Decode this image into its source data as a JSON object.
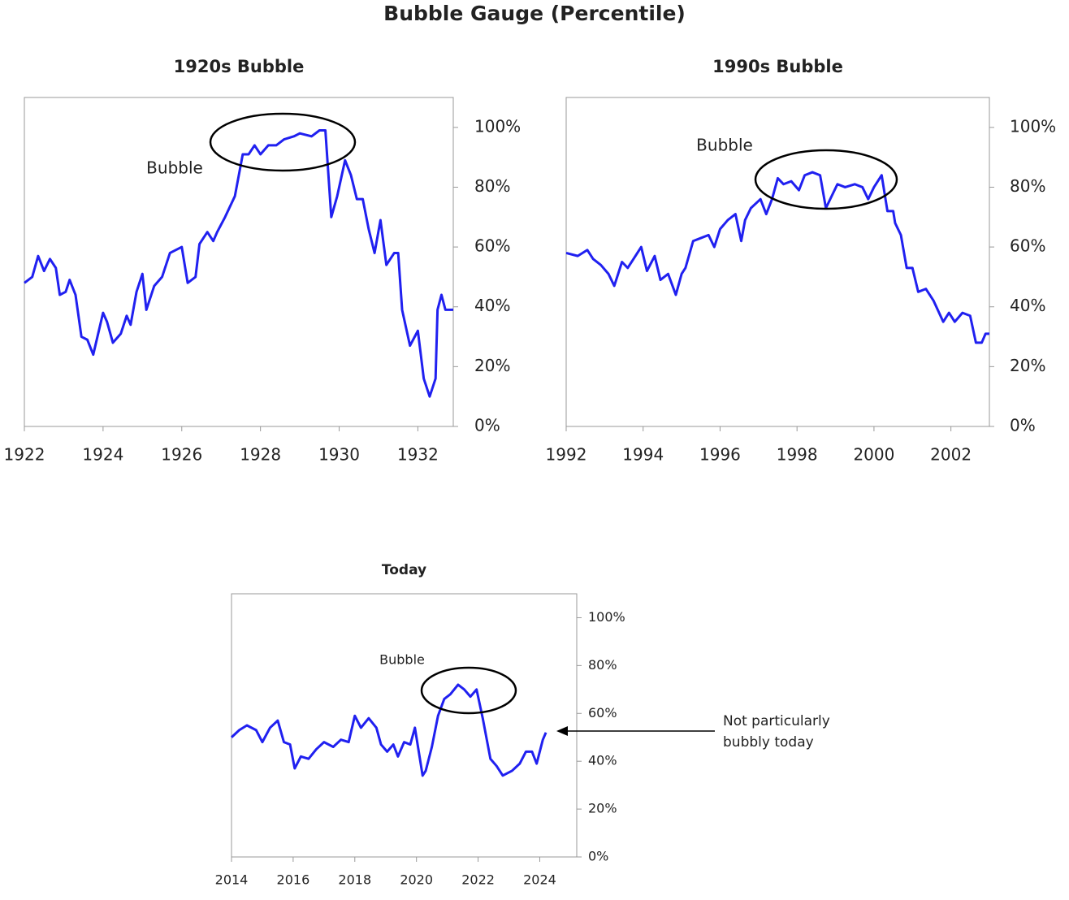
{
  "title": "Bubble Gauge (Percentile)",
  "chart_data": [
    {
      "type": "line",
      "title": "1920s Bubble",
      "annotation": "Bubble",
      "color": "#2020f0",
      "x": [
        1922.0,
        1922.2,
        1922.35,
        1922.5,
        1922.65,
        1922.8,
        1922.9,
        1923.05,
        1923.15,
        1923.3,
        1923.45,
        1923.6,
        1923.75,
        1924.0,
        1924.1,
        1924.25,
        1924.45,
        1924.6,
        1924.7,
        1924.85,
        1925.0,
        1925.1,
        1925.3,
        1925.5,
        1925.7,
        1926.0,
        1926.15,
        1926.35,
        1926.45,
        1926.65,
        1926.8,
        1926.9,
        1927.1,
        1927.35,
        1927.55,
        1927.7,
        1927.85,
        1928.0,
        1928.2,
        1928.4,
        1928.6,
        1928.85,
        1929.0,
        1929.3,
        1929.5,
        1929.65,
        1929.8,
        1929.95,
        1930.15,
        1930.3,
        1930.45,
        1930.6,
        1930.75,
        1930.9,
        1931.05,
        1931.2,
        1931.4,
        1931.5,
        1931.6,
        1931.8,
        1932.0,
        1932.15,
        1932.3,
        1932.45,
        1932.5,
        1932.6,
        1932.7,
        1932.9
      ],
      "values": [
        48,
        50,
        57,
        52,
        56,
        53,
        44,
        45,
        49,
        44,
        30,
        29,
        24,
        38,
        35,
        28,
        31,
        37,
        34,
        45,
        51,
        39,
        47,
        50,
        58,
        60,
        48,
        50,
        61,
        65,
        62,
        65,
        70,
        77,
        91,
        91,
        94,
        91,
        94,
        94,
        96,
        97,
        98,
        97,
        99,
        99,
        70,
        77,
        89,
        84,
        76,
        76,
        66,
        58,
        69,
        54,
        58,
        58,
        39,
        27,
        32,
        16,
        10,
        16,
        39,
        44,
        39,
        39
      ],
      "xlim": [
        1922,
        1932.9
      ],
      "xticks": [
        1922,
        1924,
        1926,
        1928,
        1930,
        1932
      ],
      "ylim": [
        0,
        110
      ],
      "yticks": [
        {
          "value": 0,
          "label": "0%"
        },
        {
          "value": 20,
          "label": "20%"
        },
        {
          "value": 40,
          "label": "40%"
        },
        {
          "value": 60,
          "label": "60%"
        },
        {
          "value": 80,
          "label": "80%"
        },
        {
          "value": 100,
          "label": "100%"
        }
      ]
    },
    {
      "type": "line",
      "title": "1990s Bubble",
      "annotation": "Bubble",
      "color": "#2020f0",
      "x": [
        1992.0,
        1992.3,
        1992.55,
        1992.7,
        1992.9,
        1993.1,
        1993.25,
        1993.45,
        1993.6,
        1993.75,
        1993.95,
        1994.1,
        1994.3,
        1994.45,
        1994.65,
        1994.85,
        1995.0,
        1995.1,
        1995.3,
        1995.5,
        1995.7,
        1995.85,
        1996.0,
        1996.2,
        1996.4,
        1996.55,
        1996.65,
        1996.8,
        1997.05,
        1997.2,
        1997.35,
        1997.5,
        1997.65,
        1997.85,
        1998.05,
        1998.2,
        1998.4,
        1998.6,
        1998.75,
        1998.9,
        1999.05,
        1999.25,
        1999.5,
        1999.7,
        1999.85,
        2000.0,
        2000.2,
        2000.35,
        2000.5,
        2000.55,
        2000.7,
        2000.85,
        2001.0,
        2001.15,
        2001.35,
        2001.55,
        2001.8,
        2001.95,
        2002.1,
        2002.3,
        2002.5,
        2002.65,
        2002.8,
        2002.9,
        2003.0
      ],
      "values": [
        58,
        57,
        59,
        56,
        54,
        51,
        47,
        55,
        53,
        56,
        60,
        52,
        57,
        49,
        51,
        44,
        51,
        53,
        62,
        63,
        64,
        60,
        66,
        69,
        71,
        62,
        69,
        73,
        76,
        71,
        76,
        83,
        81,
        82,
        79,
        84,
        85,
        84,
        73,
        77,
        81,
        80,
        81,
        80,
        76,
        80,
        84,
        72,
        72,
        68,
        64,
        53,
        53,
        45,
        46,
        42,
        35,
        38,
        35,
        38,
        37,
        28,
        28,
        31,
        31
      ],
      "xlim": [
        1992,
        2003
      ],
      "xticks": [
        1992,
        1994,
        1996,
        1998,
        2000,
        2002
      ],
      "ylim": [
        0,
        110
      ],
      "yticks": [
        {
          "value": 0,
          "label": "0%"
        },
        {
          "value": 20,
          "label": "20%"
        },
        {
          "value": 40,
          "label": "40%"
        },
        {
          "value": 60,
          "label": "60%"
        },
        {
          "value": 80,
          "label": "80%"
        },
        {
          "value": 100,
          "label": "100%"
        }
      ]
    },
    {
      "type": "line",
      "title": "Today",
      "annotation": "Bubble",
      "note": [
        "Not particularly",
        "bubbly today"
      ],
      "color": "#2020f0",
      "x": [
        2014.0,
        2014.25,
        2014.5,
        2014.8,
        2015.0,
        2015.25,
        2015.5,
        2015.7,
        2015.9,
        2016.05,
        2016.25,
        2016.5,
        2016.75,
        2017.0,
        2017.3,
        2017.55,
        2017.8,
        2018.0,
        2018.2,
        2018.45,
        2018.7,
        2018.85,
        2019.05,
        2019.25,
        2019.4,
        2019.6,
        2019.8,
        2019.95,
        2020.2,
        2020.3,
        2020.5,
        2020.7,
        2020.9,
        2021.1,
        2021.35,
        2021.55,
        2021.75,
        2021.95,
        2022.15,
        2022.4,
        2022.6,
        2022.8,
        2023.1,
        2023.35,
        2023.55,
        2023.75,
        2023.9,
        2024.1,
        2024.2
      ],
      "values": [
        50,
        53,
        55,
        53,
        48,
        54,
        57,
        48,
        47,
        37,
        42,
        41,
        45,
        48,
        46,
        49,
        48,
        59,
        54,
        58,
        54,
        47,
        44,
        47,
        42,
        48,
        47,
        54,
        34,
        36,
        46,
        59,
        66,
        68,
        72,
        70,
        67,
        70,
        58,
        41,
        38,
        34,
        36,
        39,
        44,
        44,
        39,
        49,
        52
      ],
      "xlim": [
        2014,
        2025.2
      ],
      "xticks": [
        2014,
        2016,
        2018,
        2020,
        2022,
        2024
      ],
      "ylim": [
        0,
        110
      ],
      "yticks": [
        {
          "value": 0,
          "label": "0%"
        },
        {
          "value": 20,
          "label": "20%"
        },
        {
          "value": 40,
          "label": "40%"
        },
        {
          "value": 60,
          "label": "60%"
        },
        {
          "value": 80,
          "label": "80%"
        },
        {
          "value": 100,
          "label": "100%"
        }
      ]
    }
  ]
}
